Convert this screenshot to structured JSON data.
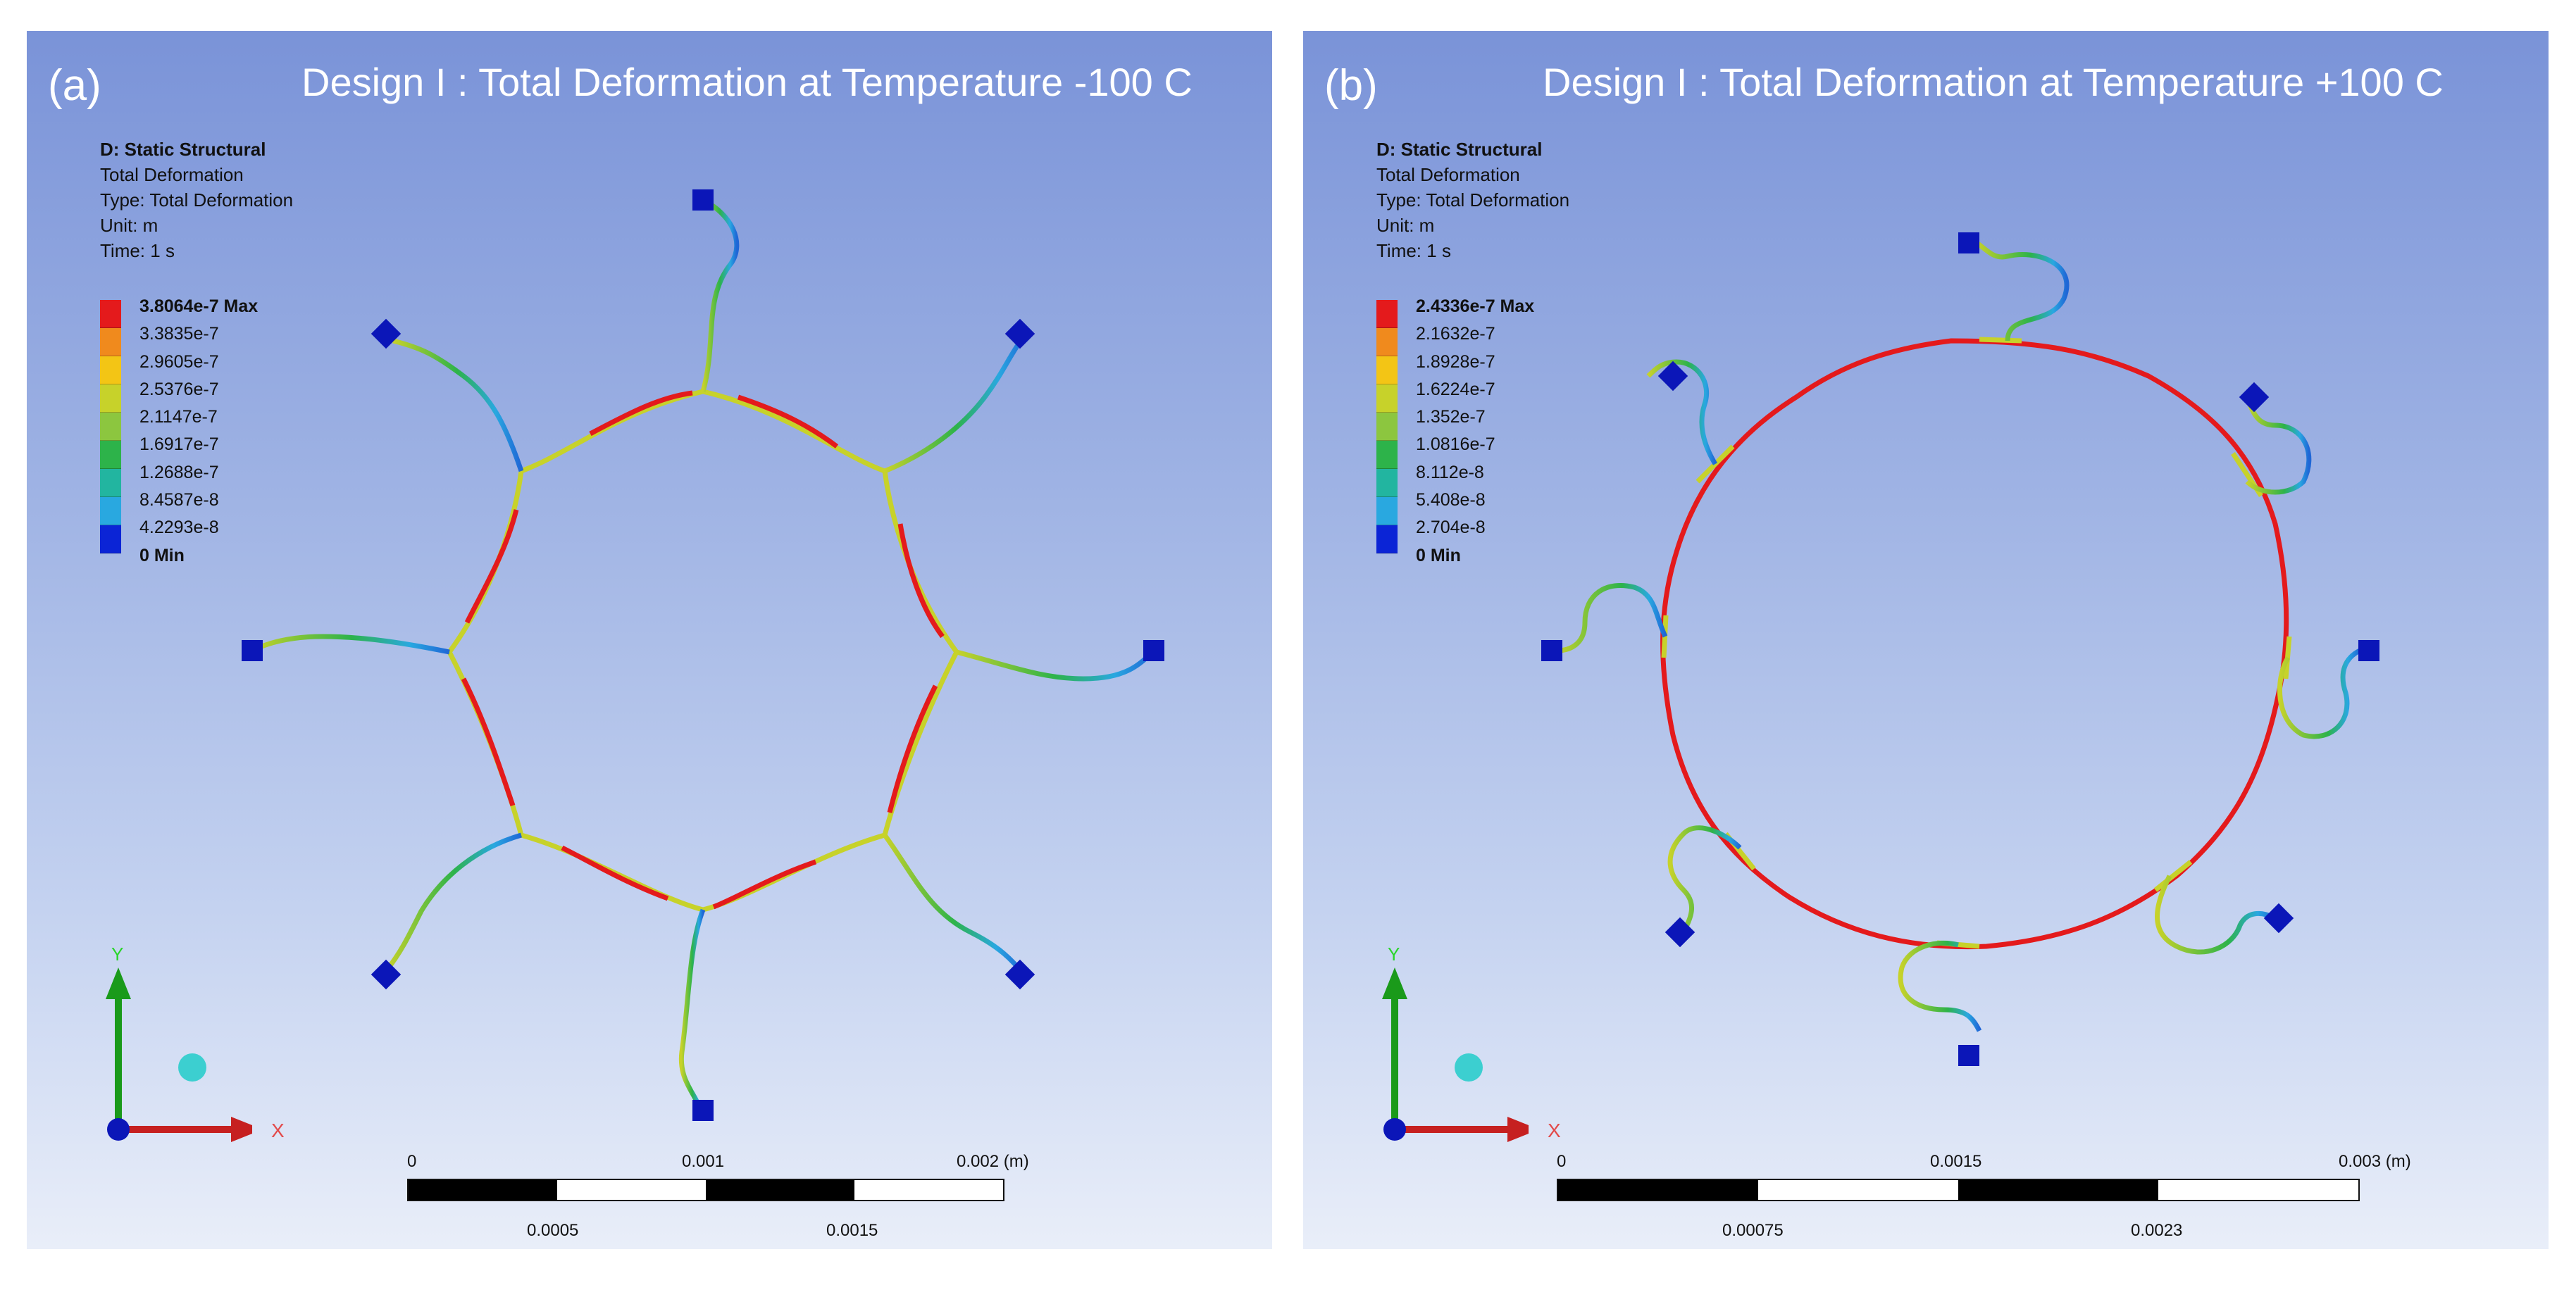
{
  "panels": [
    {
      "letter": "(a)",
      "title": "Design I : Total Deformation  at Temperature -100 C",
      "info": [
        "D: Static Structural",
        "Total Deformation",
        "Type: Total Deformation",
        "Unit: m",
        "Time: 1 s"
      ],
      "legend": [
        "3.8064e-7 Max",
        "3.3835e-7",
        "2.9605e-7",
        "2.5376e-7",
        "2.1147e-7",
        "1.6917e-7",
        "1.2688e-7",
        "8.4587e-8",
        "4.2293e-8",
        "0 Min"
      ],
      "scale_top": [
        "0",
        "0.001",
        "0.002 (m)"
      ],
      "scale_bottom": [
        "0.0005",
        "0.0015"
      ]
    },
    {
      "letter": "(b)",
      "title": "Design I : Total Deformation  at Temperature +100 C",
      "info": [
        "D: Static Structural",
        "Total Deformation",
        "Type: Total Deformation",
        "Unit: m",
        "Time: 1 s"
      ],
      "legend": [
        "2.4336e-7 Max",
        "2.1632e-7",
        "1.8928e-7",
        "1.6224e-7",
        "1.352e-7",
        "1.0816e-7",
        "8.112e-8",
        "5.408e-8",
        "2.704e-8",
        "0 Min"
      ],
      "scale_top": [
        "0",
        "0.0015",
        "0.003 (m)"
      ],
      "scale_bottom": [
        "0.00075",
        "0.0023"
      ]
    }
  ],
  "axis_labels": {
    "y": "Y",
    "x": "X"
  },
  "legend_colors": [
    "#e41a1c",
    "#f08a1d",
    "#f3c515",
    "#c7d22a",
    "#8cc63f",
    "#2db34a",
    "#22b5a0",
    "#29a8e0",
    "#1f66d6",
    "#0b24d6"
  ],
  "icons": {
    "anchor": "square-anchor-icon",
    "origin": "origin-sphere-icon"
  }
}
